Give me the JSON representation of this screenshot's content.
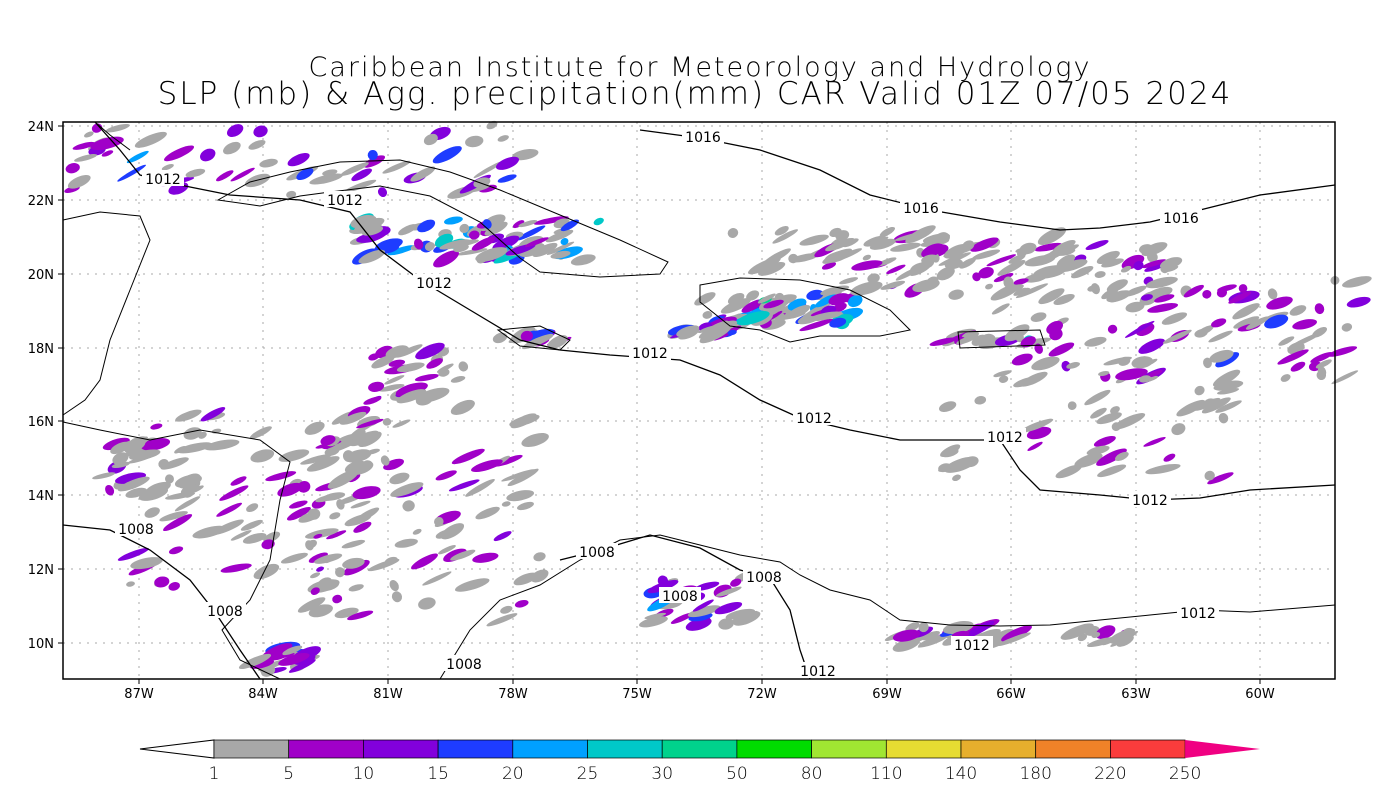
{
  "title_line1": "Caribbean Institute for Meteorology and Hydrology",
  "title_line2": "SLP (mb) & Agg. precipitation(mm) CAR Valid 01Z 07/05 2024",
  "map": {
    "lat_labels": [
      "24N",
      "22N",
      "20N",
      "18N",
      "16N",
      "14N",
      "12N",
      "10N"
    ],
    "lon_labels": [
      "87W",
      "84W",
      "81W",
      "78W",
      "75W",
      "72W",
      "69W",
      "66W",
      "63W",
      "60W"
    ],
    "isobar_labels": [
      "1016",
      "1016",
      "1016",
      "1012",
      "1012",
      "1012",
      "1012",
      "1012",
      "1012",
      "1012",
      "1012",
      "1012",
      "1012",
      "1008",
      "1008",
      "1008",
      "1008",
      "1008",
      "1008"
    ]
  },
  "colorbar": {
    "labels": [
      "1",
      "5",
      "10",
      "15",
      "20",
      "25",
      "30",
      "50",
      "80",
      "110",
      "140",
      "180",
      "220",
      "250"
    ],
    "colors": [
      "#ffffff",
      "#a8a8a8",
      "#a000c8",
      "#8200dc",
      "#1e3cff",
      "#00a0ff",
      "#00c8c8",
      "#00d28c",
      "#00dc00",
      "#a0e632",
      "#e6dc32",
      "#e6af2d",
      "#f08228",
      "#fa3c3c",
      "#f00082"
    ]
  }
}
